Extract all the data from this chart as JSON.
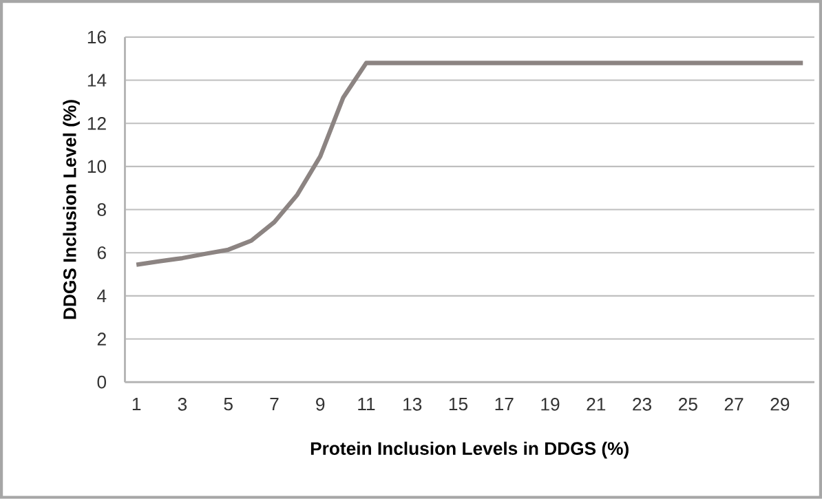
{
  "chart_data": {
    "type": "line",
    "xlabel": "Protein Inclusion Levels in DDGS (%)",
    "ylabel": "DDGS Inclusion Level (%)",
    "categories": [
      "1",
      null,
      "3",
      null,
      "5",
      null,
      "7",
      null,
      "9",
      null,
      "11",
      null,
      "13",
      null,
      "15",
      null,
      "17",
      null,
      "19",
      null,
      "21",
      null,
      "23",
      null,
      "25",
      null,
      "27",
      null,
      "29",
      null
    ],
    "values": [
      5.44,
      5.6,
      5.75,
      5.95,
      6.14,
      6.56,
      7.42,
      8.69,
      10.47,
      13.2,
      14.8,
      14.8,
      14.8,
      14.8,
      14.8,
      14.8,
      14.8,
      14.8,
      14.8,
      14.8,
      14.8,
      14.8,
      14.8,
      14.8,
      14.8,
      14.8,
      14.8,
      14.8,
      14.8,
      14.8
    ],
    "color": "#8c8482",
    "ylim": [
      0,
      16
    ],
    "yticks": [
      0,
      2,
      4,
      6,
      8,
      10,
      12,
      14,
      16
    ],
    "grid": "y",
    "marker": "none",
    "line_style": "solid"
  }
}
